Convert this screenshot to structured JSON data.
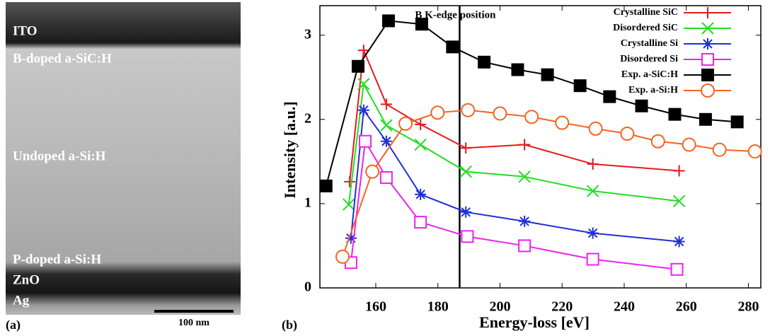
{
  "image_panel": {
    "label": "(a)",
    "layers": [
      "ITO",
      "B-doped a-SiC:H",
      "Undoped a-Si:H",
      "P-doped a-Si:H",
      "ZnO",
      "Ag"
    ],
    "scale_bar": "100 nm"
  },
  "chart_data": {
    "type": "line",
    "panel_label": "(b)",
    "x_label": "Energy-loss [eV]",
    "y_label": "Intensity [a.u.]",
    "xlim": [
      142,
      284
    ],
    "xticks": [
      160,
      180,
      200,
      220,
      240,
      260,
      280
    ],
    "ylim": [
      0,
      3.35
    ],
    "yticks": [
      0,
      1,
      2,
      3
    ],
    "legend": "upper right",
    "annotations": [
      {
        "text": "B K-edge position",
        "x": 187
      }
    ],
    "series": [
      {
        "name": "Crystalline SiC",
        "color": "#e41a1c",
        "marker": "plus",
        "x": [
          151.6,
          156.1,
          163.4,
          174.4,
          189,
          207.9,
          229.9,
          257.7
        ],
        "values": [
          1.26,
          2.82,
          2.18,
          1.94,
          1.66,
          1.7,
          1.47,
          1.39
        ]
      },
      {
        "name": "Disordered SiC",
        "color": "#22dd22",
        "marker": "x",
        "x": [
          151.3,
          156.1,
          163.4,
          174.4,
          189,
          207.9,
          229.9,
          257.7
        ],
        "values": [
          0.99,
          2.42,
          1.93,
          1.7,
          1.38,
          1.32,
          1.15,
          1.03
        ]
      },
      {
        "name": "Crystalline Si",
        "color": "#1f2fd6",
        "marker": "star",
        "x": [
          152,
          156.1,
          163.4,
          174.4,
          189,
          207.9,
          229.9,
          257.7
        ],
        "values": [
          0.59,
          2.11,
          1.74,
          1.11,
          0.9,
          0.79,
          0.65,
          0.55
        ]
      },
      {
        "name": "Disordered Si",
        "color": "#ee22ee",
        "marker": "square-open",
        "x": [
          152,
          156.6,
          163.4,
          174.4,
          189.5,
          207.9,
          229.9,
          257
        ],
        "values": [
          0.3,
          1.74,
          1.31,
          0.78,
          0.61,
          0.5,
          0.34,
          0.22
        ]
      },
      {
        "name": "Exp. a-SiC:H",
        "color": "#000000",
        "marker": "square",
        "x": [
          144,
          154.3,
          164.1,
          174.8,
          184.7,
          194.9,
          205.7,
          215.3,
          225.8,
          235.3,
          245.6,
          256.3,
          266.2,
          276.4
        ],
        "values": [
          1.21,
          2.63,
          3.17,
          3.13,
          2.86,
          2.68,
          2.59,
          2.53,
          2.4,
          2.27,
          2.16,
          2.06,
          2,
          1.97
        ]
      },
      {
        "name": "Exp. a-Si:H",
        "color": "#f26522",
        "marker": "circle-open",
        "x": [
          149.3,
          158.9,
          169.6,
          179.9,
          189.7,
          200,
          210.2,
          220,
          230.8,
          241,
          250.9,
          260.9,
          270.7,
          282.1
        ],
        "values": [
          0.37,
          1.38,
          1.95,
          2.08,
          2.11,
          2.07,
          2.03,
          1.96,
          1.89,
          1.83,
          1.74,
          1.7,
          1.64,
          1.62
        ]
      }
    ]
  }
}
